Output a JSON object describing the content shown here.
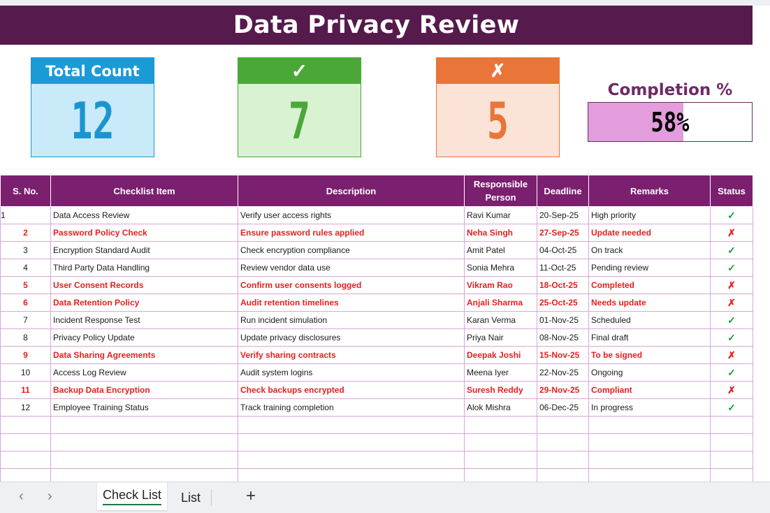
{
  "title": "Data Privacy Review",
  "summary": {
    "total": {
      "label": "Total Count",
      "value": "12"
    },
    "pass": {
      "label": "✓",
      "value": "7"
    },
    "fail": {
      "label": "✗",
      "value": "5"
    },
    "completion": {
      "label": "Completion %",
      "value": 58,
      "display": "58%"
    }
  },
  "table": {
    "headers": [
      "S. No.",
      "Checklist Item",
      "Description",
      "Responsible Person",
      "Deadline",
      "Remarks",
      "Status"
    ],
    "rows": [
      {
        "sn": "1",
        "item": "Data Access Review",
        "desc": "Verify user access rights",
        "person": "Ravi Kumar",
        "deadline": "20-Sep-25",
        "remarks": "High priority",
        "status": "✓",
        "flag": false
      },
      {
        "sn": "2",
        "item": "Password Policy Check",
        "desc": "Ensure password rules applied",
        "person": "Neha Singh",
        "deadline": "27-Sep-25",
        "remarks": "Update needed",
        "status": "✗",
        "flag": true
      },
      {
        "sn": "3",
        "item": "Encryption Standard Audit",
        "desc": "Check encryption compliance",
        "person": "Amit Patel",
        "deadline": "04-Oct-25",
        "remarks": "On track",
        "status": "✓",
        "flag": false
      },
      {
        "sn": "4",
        "item": "Third Party Data Handling",
        "desc": "Review vendor data use",
        "person": "Sonia Mehra",
        "deadline": "11-Oct-25",
        "remarks": "Pending review",
        "status": "✓",
        "flag": false
      },
      {
        "sn": "5",
        "item": "User Consent Records",
        "desc": "Confirm user consents logged",
        "person": "Vikram Rao",
        "deadline": "18-Oct-25",
        "remarks": "Completed",
        "status": "✗",
        "flag": true
      },
      {
        "sn": "6",
        "item": "Data Retention Policy",
        "desc": "Audit retention timelines",
        "person": "Anjali Sharma",
        "deadline": "25-Oct-25",
        "remarks": "Needs update",
        "status": "✗",
        "flag": true
      },
      {
        "sn": "7",
        "item": "Incident Response Test",
        "desc": "Run incident simulation",
        "person": "Karan Verma",
        "deadline": "01-Nov-25",
        "remarks": "Scheduled",
        "status": "✓",
        "flag": false
      },
      {
        "sn": "8",
        "item": "Privacy Policy Update",
        "desc": "Update privacy disclosures",
        "person": "Priya Nair",
        "deadline": "08-Nov-25",
        "remarks": "Final draft",
        "status": "✓",
        "flag": false
      },
      {
        "sn": "9",
        "item": "Data Sharing Agreements",
        "desc": "Verify sharing contracts",
        "person": "Deepak Joshi",
        "deadline": "15-Nov-25",
        "remarks": "To be signed",
        "status": "✗",
        "flag": true
      },
      {
        "sn": "10",
        "item": "Access Log Review",
        "desc": "Audit system logins",
        "person": "Meena Iyer",
        "deadline": "22-Nov-25",
        "remarks": "Ongoing",
        "status": "✓",
        "flag": false
      },
      {
        "sn": "11",
        "item": "Backup Data Encryption",
        "desc": "Check backups encrypted",
        "person": "Suresh Reddy",
        "deadline": "29-Nov-25",
        "remarks": "Compliant",
        "status": "✗",
        "flag": true
      },
      {
        "sn": "12",
        "item": "Employee Training Status",
        "desc": "Track training completion",
        "person": "Alok Mishra",
        "deadline": "06-Dec-25",
        "remarks": "In progress",
        "status": "✓",
        "flag": false
      }
    ],
    "empty_rows": 4
  },
  "tabs": {
    "prev": "‹",
    "next": "›",
    "items": [
      "Check List",
      "List"
    ],
    "active": 0,
    "add": "+"
  },
  "colors": {
    "banner": "#561a4c",
    "header": "#7b1f6f",
    "flag_text": "#e52020",
    "ok": "#1a9c3a",
    "completion_fill": "#e39cdc"
  }
}
